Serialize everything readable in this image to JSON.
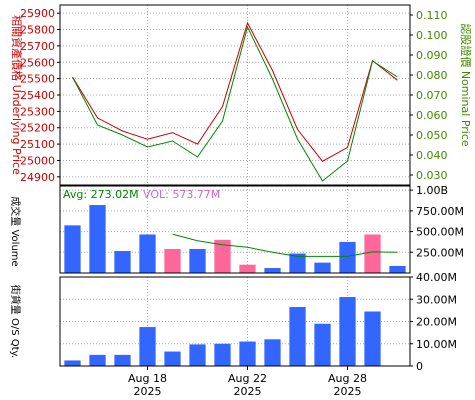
{
  "colors": {
    "underlying_line": "#cc0000",
    "nominal_line": "#008800",
    "underlying_axis": "#cc0000",
    "nominal_axis": "#448800",
    "volume_up": "#3366ff",
    "volume_down": "#ff6699",
    "avg_line": "#008800",
    "avg_label": "#008800",
    "vol_label": "#cc66cc",
    "os_bar": "#3366ff",
    "grid": "#aaaaaa"
  },
  "chart_data": [
    {
      "type": "line",
      "panel": "price",
      "ylabel_left": "相關資產價格 Underlying Price",
      "ylabel_right": "認股證價 Nominal Price",
      "x_ticks": [
        {
          "line1": "Aug 18",
          "line2": "2025",
          "index": 3
        },
        {
          "line1": "Aug 22",
          "line2": "2025",
          "index": 7
        },
        {
          "line1": "Aug 28",
          "line2": "2025",
          "index": 11
        }
      ],
      "left_axis": {
        "ticks": [
          24900,
          25000,
          25100,
          25200,
          25300,
          25400,
          25500,
          25600,
          25700,
          25800,
          25900
        ],
        "ylim": [
          24850,
          25950
        ]
      },
      "right_axis": {
        "ticks": [
          0.03,
          0.04,
          0.05,
          0.06,
          0.07,
          0.08,
          0.09,
          0.1,
          0.11
        ],
        "tick_labels": [
          "0.030",
          "0.040",
          "0.050",
          "0.060",
          "0.070",
          "0.080",
          "0.090",
          "0.100",
          "0.110"
        ],
        "ylim": [
          0.025,
          0.115
        ]
      },
      "series": [
        {
          "role": "underlying",
          "axis": "left",
          "values": [
            25510,
            25260,
            25180,
            25130,
            25170,
            25100,
            25330,
            25840,
            25550,
            25190,
            24995,
            25080,
            25610,
            25490
          ]
        },
        {
          "role": "nominal",
          "axis": "right",
          "values": [
            0.079,
            0.055,
            0.05,
            0.044,
            0.047,
            0.039,
            0.057,
            0.104,
            0.078,
            0.048,
            0.027,
            0.037,
            0.087,
            0.079
          ]
        }
      ],
      "grid": true
    },
    {
      "type": "bar",
      "panel": "volume",
      "ylabel": "成交量 Volume",
      "avg_label": "Avg: 273.02M",
      "vol_label": "VOL: 573.77M",
      "y_ticks": [
        250,
        500,
        750,
        1000
      ],
      "y_tick_labels": [
        "250.00M",
        "500.00M",
        "750.00M",
        "1.00B"
      ],
      "ylim": [
        0,
        1050
      ],
      "values": [
        575,
        820,
        265,
        465,
        290,
        290,
        400,
        100,
        60,
        235,
        125,
        375,
        465,
        85
      ],
      "direction": [
        "up",
        "up",
        "up",
        "up",
        "down",
        "up",
        "down",
        "down",
        "up",
        "up",
        "up",
        "up",
        "down",
        "up"
      ],
      "avg_line": [
        null,
        null,
        null,
        null,
        470,
        390,
        340,
        310,
        250,
        200,
        200,
        200,
        255,
        250
      ],
      "grid": true
    },
    {
      "type": "bar",
      "panel": "outstanding",
      "ylabel": "街貨量 O/S Qty.",
      "y_ticks": [
        0,
        10,
        20,
        30,
        40
      ],
      "y_tick_labels": [
        "0",
        "10.00M",
        "20.00M",
        "30.00M",
        "40.00M"
      ],
      "ylim": [
        0,
        40
      ],
      "values": [
        2.5,
        5,
        5,
        17.5,
        6.5,
        9.7,
        10,
        11,
        12,
        26.5,
        19,
        31,
        24.5
      ],
      "grid": true
    }
  ]
}
